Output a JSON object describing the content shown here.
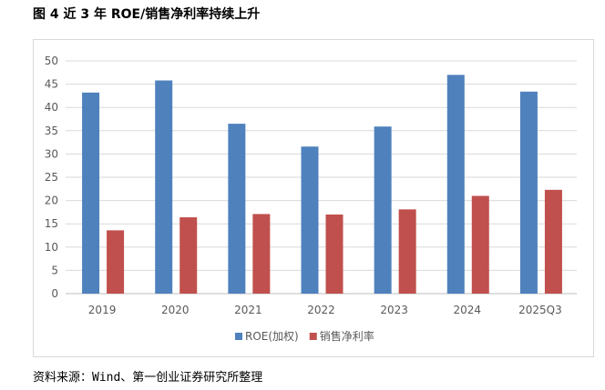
{
  "figure": {
    "title": "图 4 近 3 年 ROE/销售净利率持续上升",
    "source": "资料来源：Wind、第一创业证券研究所整理"
  },
  "chart_data": {
    "type": "bar",
    "categories": [
      "2019",
      "2020",
      "2021",
      "2022",
      "2023",
      "2024",
      "2025Q3"
    ],
    "series": [
      {
        "name": "ROE(加权)",
        "color": "#4f81bd",
        "values": [
          43.2,
          45.8,
          36.5,
          31.6,
          35.9,
          47.0,
          43.4
        ]
      },
      {
        "name": "销售净利率",
        "color": "#c0504d",
        "values": [
          13.6,
          16.4,
          17.1,
          17.0,
          18.1,
          21.0,
          22.3
        ]
      }
    ],
    "ylim": [
      0,
      50
    ],
    "yticks": [
      0,
      5,
      10,
      15,
      20,
      25,
      30,
      35,
      40,
      45,
      50
    ],
    "grid": true,
    "legend": "bottom"
  }
}
